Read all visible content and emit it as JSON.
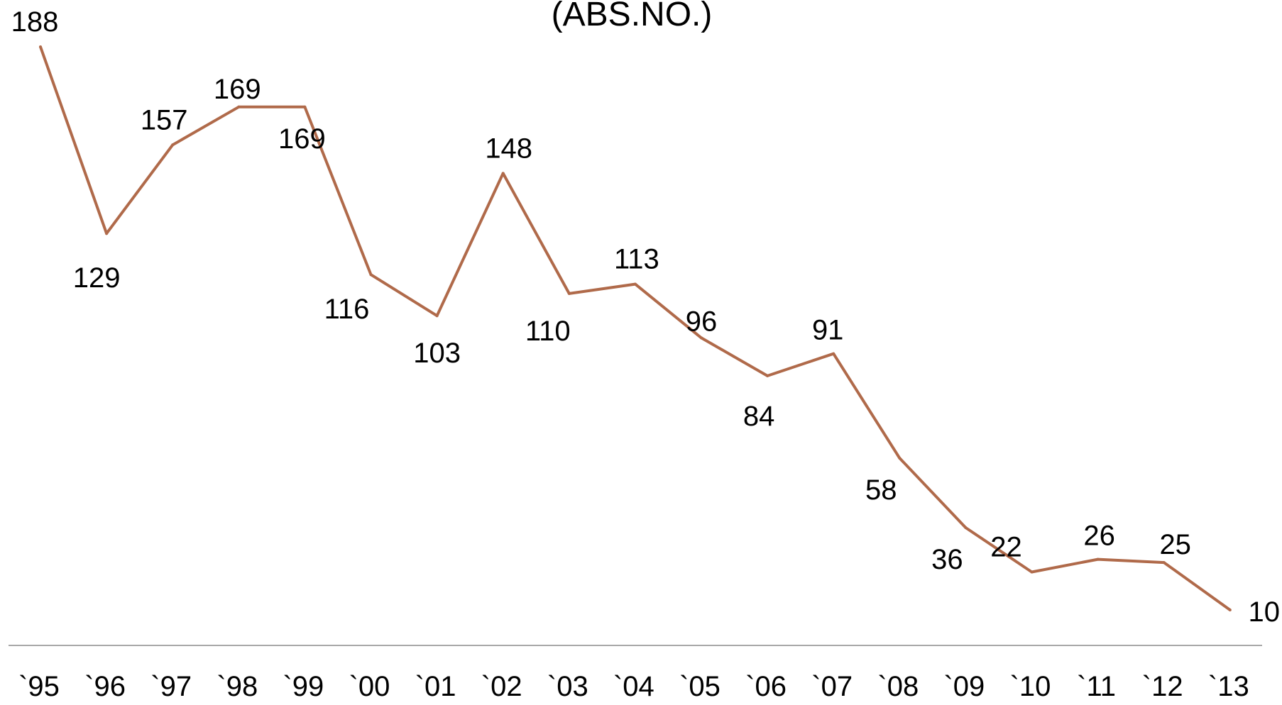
{
  "chart_data": {
    "type": "line",
    "title": "(ABS.NO.)",
    "xlabel": "",
    "ylabel": "",
    "categories": [
      "`95",
      "`96",
      "`97",
      "`98",
      "`99",
      "`00",
      "`01",
      "`02",
      "`03",
      "`04",
      "`05",
      "`06",
      "`07",
      "`08",
      "`09",
      "`10",
      "`11",
      "`12",
      "`13"
    ],
    "values": [
      188,
      129,
      157,
      169,
      169,
      116,
      103,
      148,
      110,
      113,
      96,
      84,
      91,
      58,
      36,
      22,
      26,
      25,
      10
    ],
    "data_labels": [
      "188",
      "129",
      "157",
      "169",
      "169",
      "116",
      "103",
      "148",
      "110",
      "113",
      "96",
      "84",
      "91",
      "58",
      "36",
      "22",
      "26",
      "25",
      "10"
    ],
    "grid": false,
    "legend": "none",
    "line_color": "#b06a4a",
    "axis_color": "#8c8c8c"
  }
}
